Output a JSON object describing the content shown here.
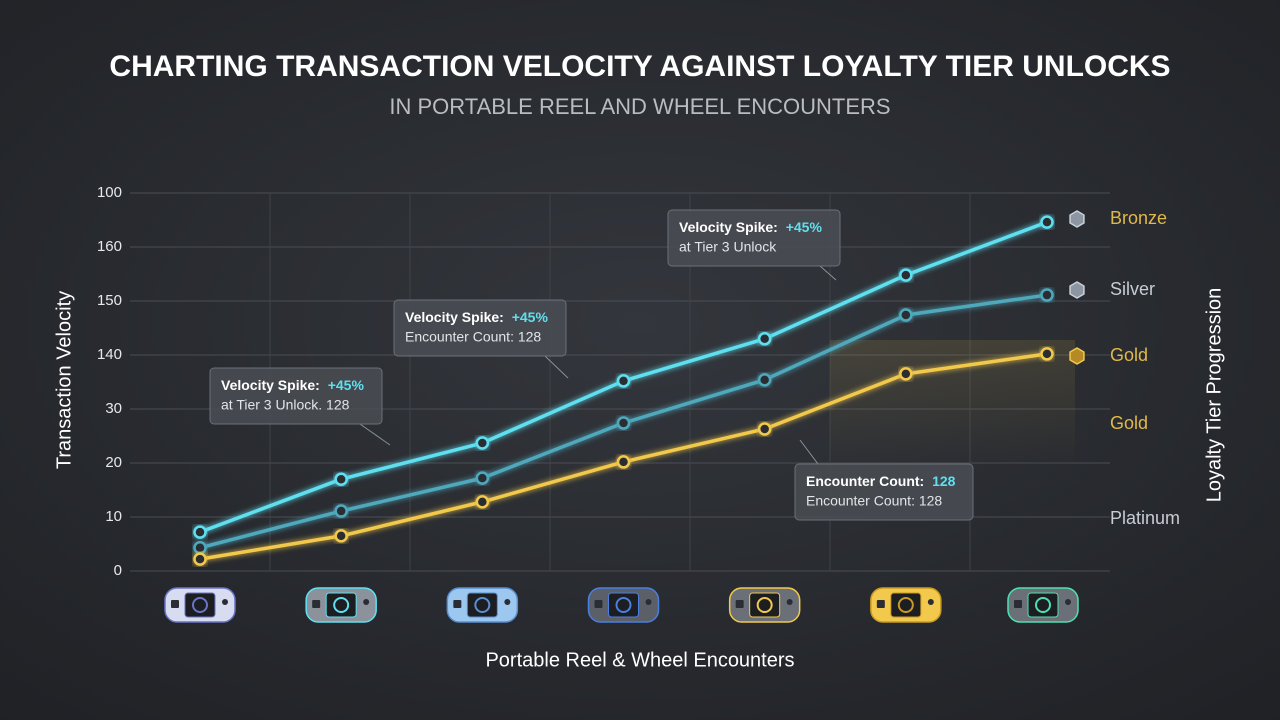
{
  "chart_data": {
    "type": "line",
    "title": "CHARTING TRANSACTION VELOCITY AGAINST LOYALTY TIER UNLOCKS",
    "subtitle": "IN PORTABLE REEL AND WHEEL ENCOUNTERS",
    "x_label": "Portable Reel & Wheel Encounters",
    "y_label": "Transaction Velocity",
    "y2_label": "Loyalty Tier Progression",
    "categories": [
      null,
      null,
      null,
      null,
      null,
      null,
      null
    ],
    "ylim": [
      0,
      70
    ],
    "yticks": [
      0,
      10,
      20,
      30,
      {
        "value": 40,
        "label": "140"
      },
      {
        "value": 50,
        "label": "150"
      },
      {
        "value": 60,
        "label": "160"
      },
      {
        "value": 70,
        "label": "100"
      }
    ],
    "grid": true,
    "series": [
      {
        "name": "Bronze",
        "color": "#5fe0f0",
        "values": [
          7.2,
          17.0,
          23.7,
          35.2,
          43.0,
          54.8,
          64.6
        ]
      },
      {
        "name": "Silver",
        "color": "#4fa9bd",
        "values": [
          4.3,
          11.1,
          17.2,
          27.4,
          35.4,
          47.4,
          51.1
        ]
      },
      {
        "name": "Gold",
        "color": "#f2c94c",
        "values": [
          2.2,
          6.5,
          12.8,
          20.2,
          26.3,
          36.5,
          40.2
        ]
      }
    ],
    "y2_labels": [
      "Gold",
      "Platinum"
    ],
    "annotations": [
      {
        "title": "Velocity Spike: ",
        "highlight": "+45%",
        "text": "at Tier 3 Unlock. 128"
      },
      {
        "title": "Velocity Spike: ",
        "highlight": "+45%",
        "text": "Encounter Count: 128"
      },
      {
        "title": "Velocity Spike: ",
        "highlight": "+45%",
        "text": "at Tier 3 Unlock"
      },
      {
        "title": "Encounter Count: ",
        "highlight": "128",
        "text": "Encounter Count: 128"
      }
    ]
  }
}
